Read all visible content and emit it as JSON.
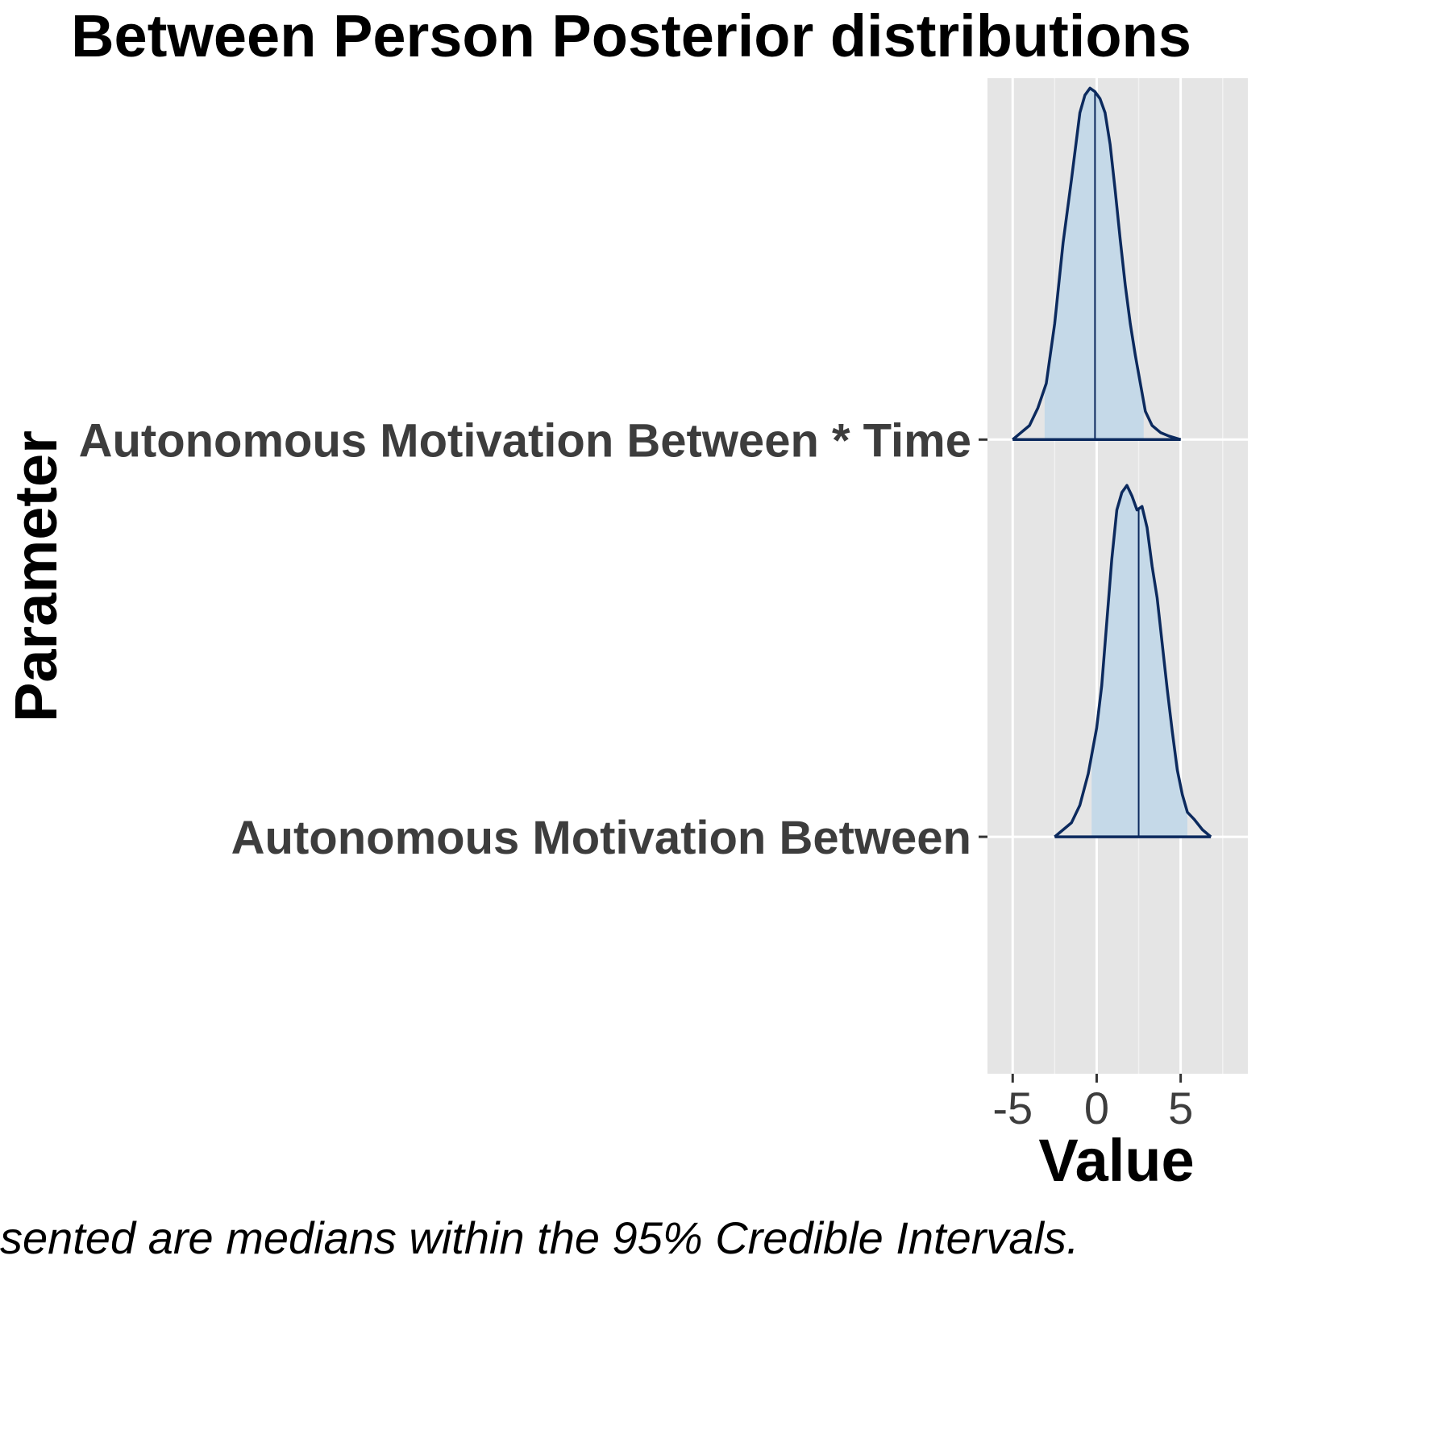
{
  "chart_data": {
    "type": "ridgeline",
    "title": "Between Person Posterior distributions",
    "xlabel": "Value",
    "ylabel": "Parameter",
    "caption": "sented are medians within the 95% Credible Intervals.",
    "xlim": [
      -6.5,
      9
    ],
    "xticks": [
      -5,
      0,
      5
    ],
    "grid": true,
    "fill_color": "#c5d9e8",
    "line_color": "#0c2a5e",
    "panel_color": "#e5e5e5",
    "series": [
      {
        "name": "Autonomous Motivation Between",
        "median": 2.5,
        "ci95": [
          -0.3,
          5.4
        ],
        "density": [
          [
            -2.5,
            0.0
          ],
          [
            -2.0,
            0.02
          ],
          [
            -1.5,
            0.04
          ],
          [
            -1.0,
            0.09
          ],
          [
            -0.5,
            0.18
          ],
          [
            0.0,
            0.31
          ],
          [
            0.3,
            0.43
          ],
          [
            0.6,
            0.61
          ],
          [
            0.9,
            0.79
          ],
          [
            1.2,
            0.93
          ],
          [
            1.5,
            0.98
          ],
          [
            1.8,
            1.0
          ],
          [
            2.1,
            0.97
          ],
          [
            2.4,
            0.93
          ],
          [
            2.7,
            0.94
          ],
          [
            3.0,
            0.88
          ],
          [
            3.3,
            0.77
          ],
          [
            3.6,
            0.68
          ],
          [
            3.9,
            0.55
          ],
          [
            4.2,
            0.42
          ],
          [
            4.5,
            0.3
          ],
          [
            4.8,
            0.19
          ],
          [
            5.1,
            0.12
          ],
          [
            5.4,
            0.07
          ],
          [
            5.8,
            0.05
          ],
          [
            6.3,
            0.02
          ],
          [
            6.8,
            0.0
          ]
        ]
      },
      {
        "name": "Autonomous Motivation Between * Time",
        "median": -0.1,
        "ci95": [
          -3.1,
          2.8
        ],
        "density": [
          [
            -5.0,
            0.0
          ],
          [
            -4.5,
            0.02
          ],
          [
            -4.0,
            0.04
          ],
          [
            -3.5,
            0.09
          ],
          [
            -3.0,
            0.16
          ],
          [
            -2.5,
            0.33
          ],
          [
            -2.0,
            0.56
          ],
          [
            -1.5,
            0.74
          ],
          [
            -1.0,
            0.93
          ],
          [
            -0.7,
            0.98
          ],
          [
            -0.4,
            1.0
          ],
          [
            -0.1,
            0.99
          ],
          [
            0.2,
            0.97
          ],
          [
            0.5,
            0.93
          ],
          [
            0.8,
            0.84
          ],
          [
            1.1,
            0.71
          ],
          [
            1.4,
            0.57
          ],
          [
            1.7,
            0.44
          ],
          [
            2.0,
            0.33
          ],
          [
            2.3,
            0.24
          ],
          [
            2.6,
            0.16
          ],
          [
            2.9,
            0.08
          ],
          [
            3.3,
            0.04
          ],
          [
            3.8,
            0.02
          ],
          [
            4.3,
            0.01
          ],
          [
            5.0,
            0.0
          ]
        ]
      }
    ]
  }
}
